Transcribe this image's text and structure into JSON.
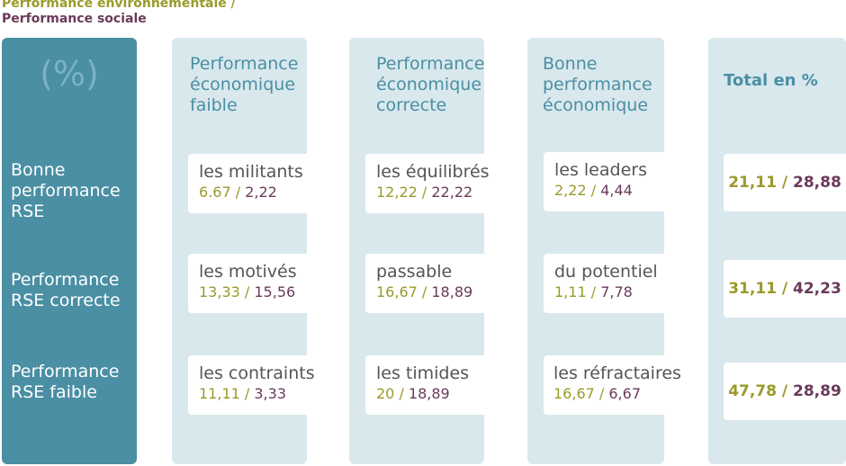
{
  "legend": {
    "environmental": "Performance environnementale /",
    "social": "Performance sociale"
  },
  "unit": "(%)",
  "row_labels": [
    [
      "Bonne",
      "performance",
      "RSE"
    ],
    [
      "Performance",
      "RSE correcte"
    ],
    [
      "Performance",
      "RSE faible"
    ]
  ],
  "column_headers": [
    [
      "Performance",
      "économique",
      "faible"
    ],
    [
      "Performance",
      "économique",
      "correcte"
    ],
    [
      "Bonne",
      "performance",
      "économique"
    ]
  ],
  "total_header": "Total en %",
  "colors": {
    "header_column": "#4a8fa4",
    "light_column": "#d9e8ec",
    "environmental": "#9a9a2a",
    "social": "#6a3a5a"
  },
  "chart_data": {
    "type": "table",
    "rows": [
      "Bonne performance RSE",
      "Performance RSE correcte",
      "Performance RSE faible"
    ],
    "columns": [
      "Performance économique faible",
      "Performance économique correcte",
      "Bonne performance économique"
    ],
    "cells": [
      [
        {
          "name": "les militants",
          "env": "6.67",
          "soc": "2,22"
        },
        {
          "name": "les équilibrés",
          "env": "12,22",
          "soc": "22,22"
        },
        {
          "name": "les leaders",
          "env": "2,22",
          "soc": "4,44"
        }
      ],
      [
        {
          "name": "les motivés",
          "env": "13,33",
          "soc": "15,56"
        },
        {
          "name": "passable",
          "env": "16,67",
          "soc": "18,89"
        },
        {
          "name": "du potentiel",
          "env": "1,11",
          "soc": "7,78"
        }
      ],
      [
        {
          "name": "les contraints",
          "env": "11,11",
          "soc": "3,33"
        },
        {
          "name": "les timides",
          "env": "20",
          "soc": "18,89"
        },
        {
          "name": "les réfractaires",
          "env": "16,67",
          "soc": "6,67"
        }
      ]
    ],
    "totals": [
      {
        "env": "21,11",
        "soc": "28,88"
      },
      {
        "env": "31,11",
        "soc": "42,23"
      },
      {
        "env": "47,78",
        "soc": "28,89"
      }
    ]
  }
}
